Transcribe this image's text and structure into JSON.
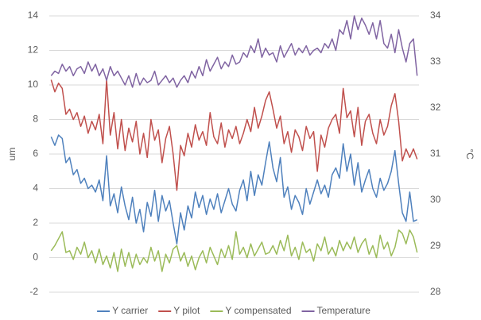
{
  "chart_data": {
    "type": "line",
    "y_label": "um",
    "y2_label": "°C",
    "ylim": [
      -2,
      14
    ],
    "yticks": [
      -2,
      0,
      2,
      4,
      6,
      8,
      10,
      12,
      14
    ],
    "y2lim": [
      28,
      34
    ],
    "y2ticks": [
      28,
      29,
      30,
      31,
      32,
      33,
      34
    ],
    "grid": true,
    "legend": "bottom",
    "series": [
      {
        "name": "Y carrier",
        "color": "#4f81bd",
        "values": [
          7.0,
          6.5,
          7.1,
          6.9,
          5.5,
          5.8,
          4.8,
          5.1,
          4.3,
          4.6,
          4.0,
          4.2,
          3.8,
          4.5,
          3.3,
          5.9,
          3.0,
          3.7,
          2.6,
          4.1,
          3.0,
          2.2,
          3.5,
          2.0,
          2.8,
          1.5,
          3.2,
          2.4,
          3.9,
          2.1,
          3.6,
          2.7,
          3.3,
          2.0,
          0.8,
          2.6,
          1.6,
          3.0,
          2.3,
          3.8,
          2.9,
          3.6,
          2.5,
          3.4,
          2.8,
          3.7,
          2.6,
          3.3,
          4.0,
          3.1,
          2.7,
          3.9,
          4.5,
          3.3,
          5.0,
          3.6,
          4.8,
          4.2,
          5.5,
          6.7,
          5.2,
          4.4,
          5.8,
          3.5,
          4.1,
          2.8,
          3.6,
          3.2,
          2.5,
          4.0,
          3.1,
          3.8,
          4.5,
          3.7,
          4.2,
          3.5,
          4.8,
          5.2,
          4.6,
          6.6,
          5.0,
          6.0,
          4.2,
          5.5,
          3.8,
          4.5,
          5.1,
          4.0,
          3.5,
          4.6,
          3.9,
          4.3,
          5.0,
          6.2,
          4.3,
          2.6,
          2.1,
          3.8,
          2.1,
          2.2
        ]
      },
      {
        "name": "Y pilot",
        "color": "#c0504d",
        "values": [
          10.3,
          9.6,
          10.1,
          9.8,
          8.3,
          8.6,
          8.0,
          8.4,
          7.6,
          8.2,
          7.2,
          7.9,
          7.4,
          8.3,
          6.6,
          10.3,
          7.1,
          8.4,
          6.3,
          8.0,
          6.2,
          7.5,
          6.7,
          7.9,
          6.0,
          7.2,
          5.8,
          8.0,
          6.8,
          7.4,
          5.5,
          6.9,
          7.6,
          6.0,
          3.9,
          6.5,
          5.9,
          7.2,
          6.4,
          7.7,
          6.8,
          7.3,
          6.5,
          8.4,
          7.0,
          6.6,
          7.8,
          6.4,
          7.4,
          6.9,
          7.6,
          6.6,
          7.2,
          8.0,
          7.3,
          8.7,
          7.5,
          8.2,
          9.1,
          9.6,
          8.6,
          7.5,
          8.2,
          6.6,
          7.3,
          6.1,
          7.4,
          7.0,
          6.2,
          7.6,
          6.9,
          7.3,
          5.0,
          7.1,
          6.4,
          7.5,
          8.0,
          8.3,
          7.2,
          9.8,
          8.1,
          8.5,
          7.0,
          8.7,
          6.5,
          7.9,
          8.3,
          7.2,
          6.6,
          8.0,
          7.1,
          7.6,
          8.8,
          9.5,
          7.9,
          5.6,
          6.3,
          5.8,
          6.3,
          5.7
        ]
      },
      {
        "name": "Y compensated",
        "color": "#9bbb59",
        "values": [
          0.4,
          0.7,
          1.1,
          1.5,
          0.3,
          0.4,
          -0.1,
          0.6,
          0.2,
          0.9,
          0.0,
          0.4,
          -0.3,
          0.5,
          -0.4,
          0.1,
          -0.6,
          0.3,
          -0.8,
          0.5,
          -0.5,
          0.3,
          -0.6,
          0.2,
          -0.4,
          0.0,
          -0.3,
          0.6,
          -0.2,
          0.4,
          -0.8,
          0.2,
          -0.3,
          0.5,
          0.7,
          -0.2,
          0.3,
          -0.5,
          0.1,
          -0.7,
          0.0,
          0.4,
          -0.3,
          0.6,
          0.1,
          -0.4,
          0.5,
          0.0,
          0.7,
          -0.1,
          1.5,
          0.2,
          0.6,
          0.0,
          0.8,
          0.1,
          0.5,
          0.9,
          0.2,
          0.3,
          0.7,
          0.2,
          1.0,
          0.4,
          1.3,
          0.1,
          0.6,
          -0.1,
          0.9,
          0.3,
          0.5,
          -0.2,
          0.8,
          0.4,
          1.2,
          0.2,
          0.6,
          0.1,
          1.0,
          0.4,
          0.9,
          0.5,
          1.2,
          0.3,
          0.8,
          1.1,
          0.2,
          0.7,
          0.0,
          1.3,
          0.5,
          0.9,
          0.1,
          0.6,
          1.6,
          1.4,
          0.8,
          1.6,
          1.2,
          0.3
        ]
      },
      {
        "name": "Temperature",
        "color": "#8064a2",
        "axis": "y2",
        "values": [
          32.7,
          32.8,
          32.75,
          32.95,
          32.8,
          32.9,
          32.7,
          32.85,
          32.9,
          32.75,
          33.0,
          32.8,
          32.95,
          32.7,
          32.85,
          32.6,
          32.9,
          32.7,
          32.8,
          32.65,
          32.5,
          32.7,
          32.45,
          32.75,
          32.5,
          32.65,
          32.55,
          32.6,
          32.8,
          32.5,
          32.6,
          32.7,
          32.55,
          32.65,
          32.45,
          32.6,
          32.7,
          32.55,
          32.8,
          32.65,
          32.9,
          32.7,
          33.05,
          32.8,
          32.95,
          33.1,
          32.85,
          33.0,
          32.9,
          33.15,
          32.95,
          33.0,
          33.2,
          33.1,
          33.35,
          33.2,
          33.5,
          33.1,
          33.3,
          33.15,
          33.2,
          33.0,
          33.35,
          33.1,
          33.25,
          33.4,
          33.15,
          33.3,
          33.2,
          33.35,
          33.15,
          33.25,
          33.3,
          33.2,
          33.4,
          33.3,
          33.5,
          33.25,
          33.7,
          33.6,
          33.9,
          33.5,
          34.0,
          33.7,
          33.95,
          33.8,
          33.6,
          33.85,
          33.5,
          33.9,
          33.4,
          33.3,
          33.6,
          33.2,
          33.7,
          33.3,
          33.0,
          33.4,
          33.5,
          32.7
        ]
      }
    ]
  }
}
